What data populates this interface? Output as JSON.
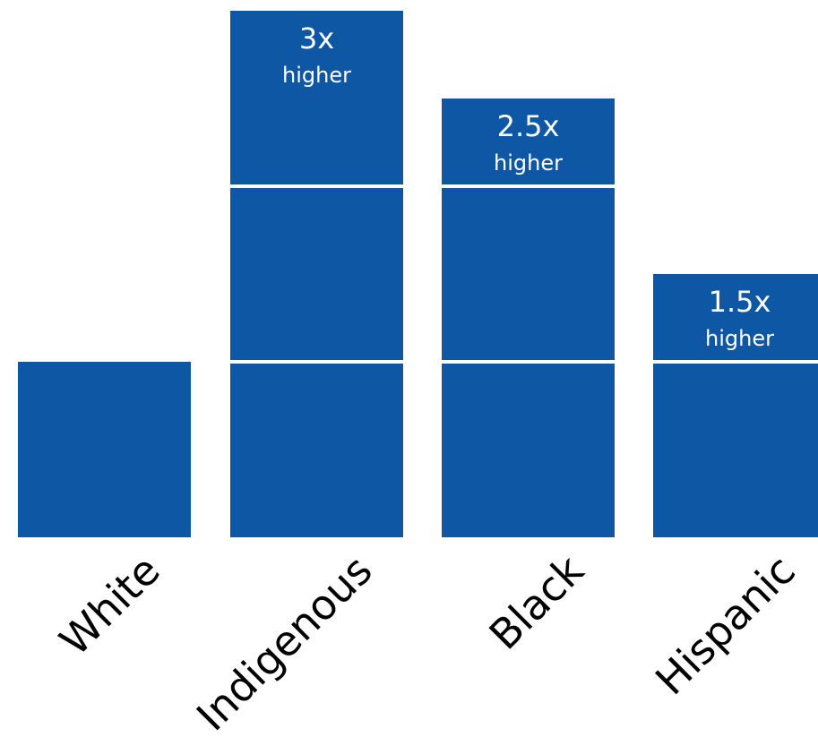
{
  "chart_data": {
    "type": "bar",
    "categories": [
      "White",
      "Indigenous",
      "Black",
      "Hispanic"
    ],
    "values": [
      1,
      3,
      2.5,
      1.5
    ],
    "value_labels": [
      {
        "multiplier": "",
        "suffix": ""
      },
      {
        "multiplier": "3x",
        "suffix": "higher"
      },
      {
        "multiplier": "2.5x",
        "suffix": "higher"
      },
      {
        "multiplier": "1.5x",
        "suffix": "higher"
      }
    ],
    "title": "",
    "xlabel": "",
    "ylabel": "",
    "ylim": [
      0,
      3
    ],
    "grid": false,
    "legend": "none",
    "colors": {
      "bar": "#0e57a5",
      "divider": "#ffffff",
      "label_text": "#ffffff",
      "category_text": "#000000",
      "background": "#ffffff"
    }
  }
}
